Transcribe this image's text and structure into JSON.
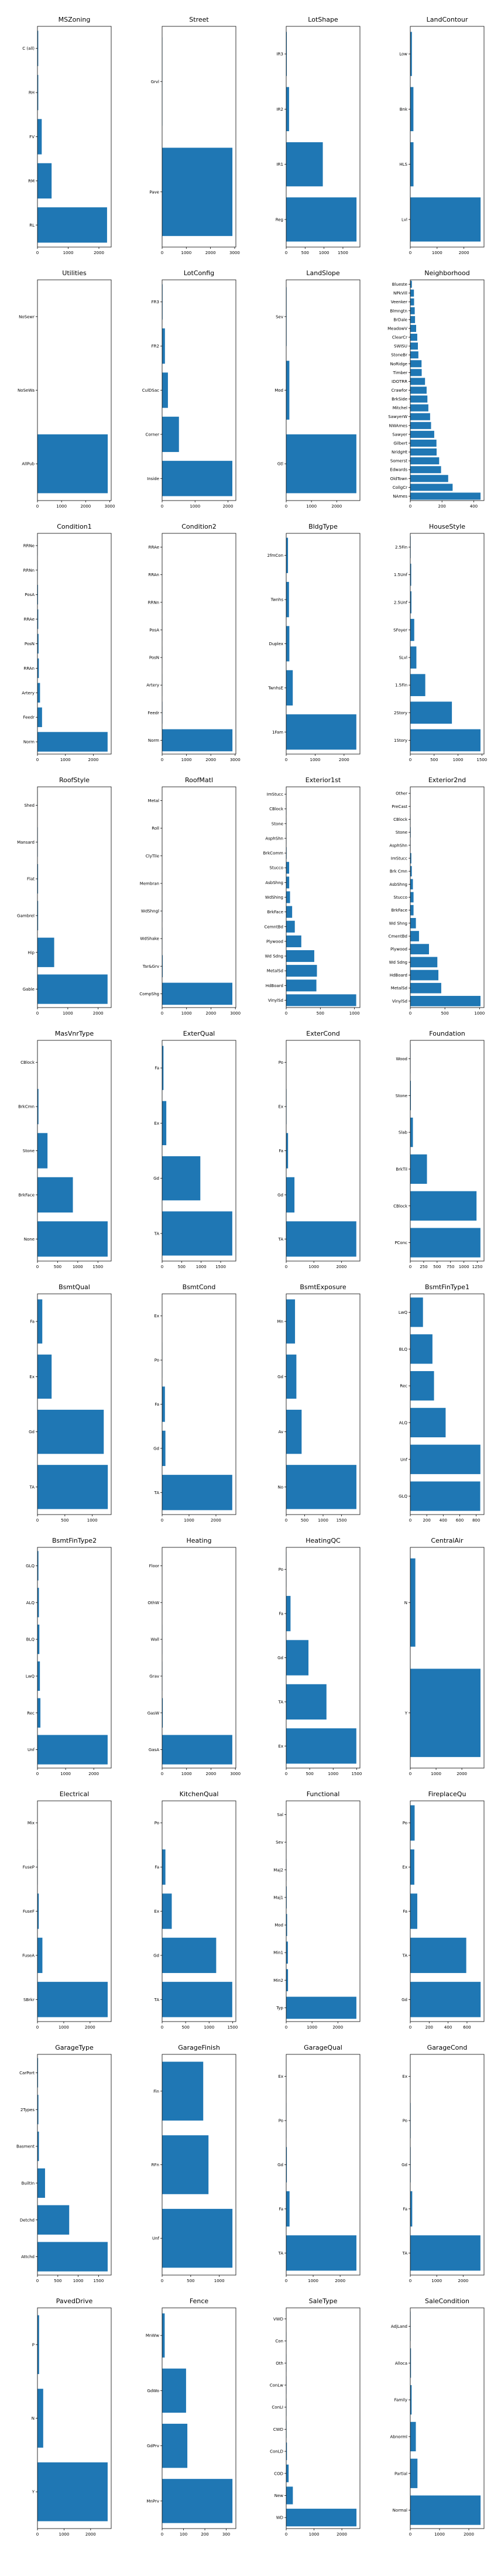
{
  "bar_color": "#1f77b4",
  "chart_data": [
    {
      "type": "bar",
      "orientation": "horizontal",
      "title": "MSZoning",
      "categories": [
        "RL",
        "RM",
        "FV",
        "RH",
        "C (all)"
      ],
      "values": [
        2265,
        460,
        139,
        26,
        25
      ],
      "xlim": [
        0,
        2400
      ],
      "xticks": [
        0,
        1000,
        2000
      ]
    },
    {
      "type": "bar",
      "orientation": "horizontal",
      "title": "Street",
      "categories": [
        "Pave",
        "Grvl"
      ],
      "values": [
        2907,
        12
      ],
      "xlim": [
        0,
        3050
      ],
      "xticks": [
        0,
        1000,
        2000,
        3000
      ]
    },
    {
      "type": "bar",
      "orientation": "horizontal",
      "title": "LotShape",
      "categories": [
        "Reg",
        "IR1",
        "IR2",
        "IR3"
      ],
      "values": [
        1859,
        968,
        76,
        16
      ],
      "xlim": [
        0,
        1950
      ],
      "xticks": [
        0,
        500,
        1000,
        1500
      ]
    },
    {
      "type": "bar",
      "orientation": "horizontal",
      "title": "LandContour",
      "categories": [
        "Lvl",
        "HLS",
        "Bnk",
        "Low"
      ],
      "values": [
        2622,
        120,
        117,
        60
      ],
      "xlim": [
        0,
        2750
      ],
      "xticks": [
        0,
        1000,
        2000
      ]
    },
    {
      "type": "bar",
      "orientation": "horizontal",
      "title": "Utilities",
      "categories": [
        "AllPub",
        "NoSeWa",
        "NoSewr"
      ],
      "values": [
        2916,
        1,
        0
      ],
      "xlim": [
        0,
        3060
      ],
      "xticks": [
        0,
        1000,
        2000,
        3000
      ]
    },
    {
      "type": "bar",
      "orientation": "horizontal",
      "title": "LotConfig",
      "categories": [
        "Inside",
        "Corner",
        "CulDSac",
        "FR2",
        "FR3"
      ],
      "values": [
        2133,
        511,
        176,
        85,
        14
      ],
      "xlim": [
        0,
        2240
      ],
      "xticks": [
        0,
        1000,
        2000
      ]
    },
    {
      "type": "bar",
      "orientation": "horizontal",
      "title": "LandSlope",
      "categories": [
        "Gtl",
        "Mod",
        "Sev"
      ],
      "values": [
        2778,
        125,
        16
      ],
      "xlim": [
        0,
        2920
      ],
      "xticks": [
        0,
        1000,
        2000
      ]
    },
    {
      "type": "bar",
      "orientation": "horizontal",
      "title": "Neighborhood",
      "categories": [
        "NAmes",
        "CollgCr",
        "OldTown",
        "Edwards",
        "Somerst",
        "NridgHt",
        "Gilbert",
        "Sawyer",
        "NWAmes",
        "SawyerW",
        "Mitchel",
        "BrkSide",
        "Crawfor",
        "IDOTRR",
        "Timber",
        "NoRidge",
        "StoneBr",
        "SWISU",
        "ClearCr",
        "MeadowV",
        "BrDale",
        "Blmngtn",
        "Veenker",
        "NPkVill",
        "Blueste"
      ],
      "values": [
        443,
        267,
        239,
        194,
        182,
        166,
        165,
        151,
        131,
        125,
        114,
        108,
        103,
        93,
        72,
        71,
        51,
        48,
        44,
        37,
        30,
        28,
        24,
        23,
        10
      ],
      "xlim": [
        0,
        465
      ],
      "xticks": [
        0,
        200,
        400
      ]
    },
    {
      "type": "bar",
      "orientation": "horizontal",
      "title": "Condition1",
      "categories": [
        "Norm",
        "Feedr",
        "Artery",
        "RRAn",
        "PosN",
        "RRAe",
        "PosA",
        "RRNn",
        "RRNe"
      ],
      "values": [
        2511,
        164,
        92,
        50,
        39,
        28,
        20,
        9,
        6
      ],
      "xlim": [
        0,
        2640
      ],
      "xticks": [
        0,
        1000,
        2000
      ]
    },
    {
      "type": "bar",
      "orientation": "horizontal",
      "title": "Condition2",
      "categories": [
        "Norm",
        "Feedr",
        "Artery",
        "PosN",
        "PosA",
        "RRNn",
        "RRAn",
        "RRAe"
      ],
      "values": [
        2889,
        13,
        5,
        4,
        4,
        2,
        1,
        1
      ],
      "xlim": [
        0,
        3030
      ],
      "xticks": [
        0,
        1000,
        2000,
        3000
      ]
    },
    {
      "type": "bar",
      "orientation": "horizontal",
      "title": "BldgType",
      "categories": [
        "1Fam",
        "TwnhsE",
        "Duplex",
        "Twnhs",
        "2fmCon"
      ],
      "values": [
        2425,
        227,
        109,
        96,
        62
      ],
      "xlim": [
        0,
        2550
      ],
      "xticks": [
        0,
        1000,
        2000
      ]
    },
    {
      "type": "bar",
      "orientation": "horizontal",
      "title": "HouseStyle",
      "categories": [
        "1Story",
        "2Story",
        "1.5Fin",
        "SLvl",
        "SFoyer",
        "2.5Unf",
        "1.5Unf",
        "2.5Fin"
      ],
      "values": [
        1471,
        872,
        314,
        128,
        83,
        24,
        19,
        8
      ],
      "xlim": [
        0,
        1545
      ],
      "xticks": [
        0,
        500,
        1000,
        1500
      ]
    },
    {
      "type": "bar",
      "orientation": "horizontal",
      "title": "RoofStyle",
      "categories": [
        "Gable",
        "Hip",
        "Gambrel",
        "Flat",
        "Mansard",
        "Shed"
      ],
      "values": [
        2310,
        551,
        22,
        20,
        11,
        5
      ],
      "xlim": [
        0,
        2430
      ],
      "xticks": [
        0,
        1000,
        2000
      ]
    },
    {
      "type": "bar",
      "orientation": "horizontal",
      "title": "RoofMatl",
      "categories": [
        "CompShg",
        "Tar&Grv",
        "WdShake",
        "WdShngl",
        "Membran",
        "ClyTile",
        "Roll",
        "Metal"
      ],
      "values": [
        2876,
        23,
        9,
        7,
        1,
        1,
        1,
        1
      ],
      "xlim": [
        0,
        3020
      ],
      "xticks": [
        0,
        1000,
        2000,
        3000
      ]
    },
    {
      "type": "bar",
      "orientation": "horizontal",
      "title": "Exterior1st",
      "categories": [
        "VinylSd",
        "HdBoard",
        "MetalSd",
        "Wd Sdng",
        "Plywood",
        "CemntBd",
        "BrkFace",
        "WdShing",
        "AsbShng",
        "Stucco",
        "BrkComm",
        "AsphShn",
        "Stone",
        "CBlock",
        "ImStucc"
      ],
      "values": [
        1025,
        442,
        450,
        411,
        221,
        126,
        87,
        56,
        44,
        43,
        6,
        2,
        2,
        2,
        1
      ],
      "xlim": [
        0,
        1080
      ],
      "xticks": [
        0,
        500,
        1000
      ]
    },
    {
      "type": "bar",
      "orientation": "horizontal",
      "title": "Exterior2nd",
      "categories": [
        "VinylSd",
        "MetalSd",
        "HdBoard",
        "Wd Sdng",
        "Plywood",
        "CmentBd",
        "Wd Shng",
        "BrkFace",
        "Stucco",
        "AsbShng",
        "Brk Cmn",
        "ImStucc",
        "AsphShn",
        "Stone",
        "CBlock",
        "PreCast",
        "Other"
      ],
      "values": [
        1014,
        447,
        406,
        391,
        270,
        126,
        81,
        47,
        47,
        38,
        22,
        15,
        4,
        6,
        3,
        0,
        1
      ],
      "xlim": [
        0,
        1065
      ],
      "xticks": [
        0,
        500,
        1000
      ]
    },
    {
      "type": "bar",
      "orientation": "horizontal",
      "title": "MasVnrType",
      "categories": [
        "None",
        "BrkFace",
        "Stone",
        "BrkCmn",
        "CBlock"
      ],
      "values": [
        1742,
        879,
        249,
        25,
        1
      ],
      "xlim": [
        0,
        1830
      ],
      "xticks": [
        0,
        500,
        1000,
        1500
      ]
    },
    {
      "type": "bar",
      "orientation": "horizontal",
      "title": "ExterQual",
      "categories": [
        "TA",
        "Gd",
        "Ex",
        "Fa"
      ],
      "values": [
        1798,
        979,
        107,
        35
      ],
      "xlim": [
        0,
        1890
      ],
      "xticks": [
        0,
        500,
        1000,
        1500
      ]
    },
    {
      "type": "bar",
      "orientation": "horizontal",
      "title": "ExterCond",
      "categories": [
        "TA",
        "Gd",
        "Fa",
        "Ex",
        "Po"
      ],
      "values": [
        2538,
        299,
        67,
        12,
        3
      ],
      "xlim": [
        0,
        2670
      ],
      "xticks": [
        0,
        1000,
        2000
      ]
    },
    {
      "type": "bar",
      "orientation": "horizontal",
      "title": "Foundation",
      "categories": [
        "PConc",
        "CBlock",
        "BrkTil",
        "Slab",
        "Stone",
        "Wood"
      ],
      "values": [
        1308,
        1235,
        311,
        49,
        11,
        5
      ],
      "xlim": [
        0,
        1375
      ],
      "xticks": [
        0,
        250,
        500,
        750,
        1000,
        1250
      ]
    },
    {
      "type": "bar",
      "orientation": "horizontal",
      "title": "BsmtQual",
      "categories": [
        "TA",
        "Gd",
        "Ex",
        "Fa"
      ],
      "values": [
        1283,
        1209,
        258,
        88
      ],
      "xlim": [
        0,
        1345
      ],
      "xticks": [
        0,
        500,
        1000
      ]
    },
    {
      "type": "bar",
      "orientation": "horizontal",
      "title": "BsmtCond",
      "categories": [
        "TA",
        "Gd",
        "Fa",
        "Po",
        "Ex"
      ],
      "values": [
        2606,
        122,
        104,
        5,
        0
      ],
      "xlim": [
        0,
        2740
      ],
      "xticks": [
        0,
        1000,
        2000
      ]
    },
    {
      "type": "bar",
      "orientation": "horizontal",
      "title": "BsmtExposure",
      "categories": [
        "No",
        "Av",
        "Gd",
        "Mn"
      ],
      "values": [
        1904,
        418,
        276,
        239
      ],
      "xlim": [
        0,
        2000
      ],
      "xticks": [
        0,
        500,
        1000,
        1500
      ]
    },
    {
      "type": "bar",
      "orientation": "horizontal",
      "title": "BsmtFinType1",
      "categories": [
        "GLQ",
        "Unf",
        "ALQ",
        "Rec",
        "BLQ",
        "LwQ"
      ],
      "values": [
        849,
        851,
        429,
        288,
        269,
        154
      ],
      "xlim": [
        0,
        895
      ],
      "xticks": [
        0,
        200,
        400,
        600,
        800
      ]
    },
    {
      "type": "bar",
      "orientation": "horizontal",
      "title": "BsmtFinType2",
      "categories": [
        "Unf",
        "Rec",
        "LwQ",
        "BLQ",
        "ALQ",
        "GLQ"
      ],
      "values": [
        2493,
        105,
        87,
        68,
        52,
        34
      ],
      "xlim": [
        0,
        2620
      ],
      "xticks": [
        0,
        1000,
        2000
      ]
    },
    {
      "type": "bar",
      "orientation": "horizontal",
      "title": "Heating",
      "categories": [
        "GasA",
        "GasW",
        "Grav",
        "Wall",
        "OthW",
        "Floor"
      ],
      "values": [
        2874,
        27,
        9,
        6,
        2,
        1
      ],
      "xlim": [
        0,
        3020
      ],
      "xticks": [
        0,
        1000,
        2000,
        3000
      ]
    },
    {
      "type": "bar",
      "orientation": "horizontal",
      "title": "HeatingQC",
      "categories": [
        "Ex",
        "TA",
        "Gd",
        "Fa",
        "Po"
      ],
      "values": [
        1493,
        857,
        474,
        92,
        3
      ],
      "xlim": [
        0,
        1570
      ],
      "xticks": [
        0,
        500,
        1000,
        1500
      ]
    },
    {
      "type": "bar",
      "orientation": "horizontal",
      "title": "CentralAir",
      "categories": [
        "Y",
        "N"
      ],
      "values": [
        2723,
        196
      ],
      "xlim": [
        0,
        2860
      ],
      "xticks": [
        0,
        1000,
        2000
      ]
    },
    {
      "type": "bar",
      "orientation": "horizontal",
      "title": "Electrical",
      "categories": [
        "SBrkr",
        "FuseA",
        "FuseF",
        "FuseP",
        "Mix"
      ],
      "values": [
        2671,
        188,
        50,
        8,
        1
      ],
      "xlim": [
        0,
        2805
      ],
      "xticks": [
        0,
        1000,
        2000
      ]
    },
    {
      "type": "bar",
      "orientation": "horizontal",
      "title": "KitchenQual",
      "categories": [
        "TA",
        "Gd",
        "Ex",
        "Fa",
        "Po"
      ],
      "values": [
        1493,
        1151,
        205,
        70,
        0
      ],
      "xlim": [
        0,
        1570
      ],
      "xticks": [
        0,
        500,
        1000,
        1500
      ]
    },
    {
      "type": "bar",
      "orientation": "horizontal",
      "title": "Functional",
      "categories": [
        "Typ",
        "Min2",
        "Min1",
        "Mod",
        "Maj1",
        "Maj2",
        "Sev",
        "Sal"
      ],
      "values": [
        2717,
        70,
        65,
        35,
        19,
        9,
        2,
        0
      ],
      "xlim": [
        0,
        2855
      ],
      "xticks": [
        0,
        1000,
        2000
      ]
    },
    {
      "type": "bar",
      "orientation": "horizontal",
      "title": "FireplaceQu",
      "categories": [
        "Gd",
        "TA",
        "Fa",
        "Ex",
        "Po"
      ],
      "values": [
        744,
        592,
        74,
        43,
        46
      ],
      "xlim": [
        0,
        780
      ],
      "xticks": [
        0,
        200,
        400,
        600
      ]
    },
    {
      "type": "bar",
      "orientation": "horizontal",
      "title": "GarageType",
      "categories": [
        "Attchd",
        "Detchd",
        "BuiltIn",
        "Basment",
        "2Types",
        "CarPort"
      ],
      "values": [
        1723,
        779,
        186,
        36,
        23,
        15
      ],
      "xlim": [
        0,
        1810
      ],
      "xticks": [
        0,
        500,
        1000,
        1500
      ]
    },
    {
      "type": "bar",
      "orientation": "horizontal",
      "title": "GarageFinish",
      "categories": [
        "Unf",
        "RFn",
        "Fin"
      ],
      "values": [
        1230,
        811,
        719
      ],
      "xlim": [
        0,
        1290
      ],
      "xticks": [
        0,
        500,
        1000
      ]
    },
    {
      "type": "bar",
      "orientation": "horizontal",
      "title": "GarageQual",
      "categories": [
        "TA",
        "Fa",
        "Gd",
        "Po",
        "Ex"
      ],
      "values": [
        2604,
        124,
        24,
        5,
        3
      ],
      "xlim": [
        0,
        2735
      ],
      "xticks": [
        0,
        1000,
        2000
      ]
    },
    {
      "type": "bar",
      "orientation": "horizontal",
      "title": "GarageCond",
      "categories": [
        "TA",
        "Fa",
        "Gd",
        "Po",
        "Ex"
      ],
      "values": [
        2654,
        74,
        15,
        14,
        3
      ],
      "xlim": [
        0,
        2790
      ],
      "xticks": [
        0,
        1000,
        2000
      ]
    },
    {
      "type": "bar",
      "orientation": "horizontal",
      "title": "PavedDrive",
      "categories": [
        "Y",
        "N",
        "P"
      ],
      "values": [
        2641,
        216,
        62
      ],
      "xlim": [
        0,
        2775
      ],
      "xticks": [
        0,
        1000,
        2000
      ]
    },
    {
      "type": "bar",
      "orientation": "horizontal",
      "title": "Fence",
      "categories": [
        "MnPrv",
        "GdPrv",
        "GdWo",
        "MnWw"
      ],
      "values": [
        329,
        118,
        112,
        12
      ],
      "xlim": [
        0,
        345
      ],
      "xticks": [
        0,
        100,
        200,
        300
      ]
    },
    {
      "type": "bar",
      "orientation": "horizontal",
      "title": "SaleType",
      "categories": [
        "WD",
        "New",
        "COD",
        "ConLD",
        "CWD",
        "ConLI",
        "ConLw",
        "Oth",
        "Con",
        "VWD"
      ],
      "values": [
        2525,
        239,
        87,
        26,
        12,
        9,
        8,
        7,
        5,
        1
      ],
      "xlim": [
        0,
        2650
      ],
      "xticks": [
        0,
        1000,
        2000
      ]
    },
    {
      "type": "bar",
      "orientation": "horizontal",
      "title": "SaleCondition",
      "categories": [
        "Normal",
        "Partial",
        "Abnorml",
        "Family",
        "Alloca",
        "AdjLand"
      ],
      "values": [
        2402,
        245,
        190,
        46,
        24,
        12
      ],
      "xlim": [
        0,
        2520
      ],
      "xticks": [
        0,
        1000,
        2000
      ]
    }
  ]
}
